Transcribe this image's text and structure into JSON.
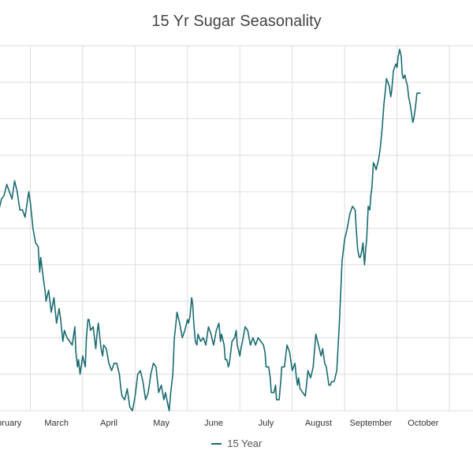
{
  "chart_data": {
    "type": "line",
    "title": "15 Yr Sugar Seasonality",
    "xlabel": "",
    "ylabel": "",
    "x_tick_labels": [
      "February",
      "March",
      "April",
      "May",
      "June",
      "July",
      "August",
      "September",
      "October"
    ],
    "x_range": [
      0,
      9.45
    ],
    "ylim": [
      0,
      100
    ],
    "grid": true,
    "legend_position": "bottom",
    "series": [
      {
        "name": "15 Year",
        "color": "#1a6b70",
        "points": [
          [
            0.0,
            64
          ],
          [
            0.05,
            61
          ],
          [
            0.1,
            55
          ],
          [
            0.15,
            52
          ],
          [
            0.2,
            48
          ],
          [
            0.25,
            44
          ],
          [
            0.28,
            43
          ],
          [
            0.3,
            45
          ],
          [
            0.35,
            52
          ],
          [
            0.4,
            55
          ],
          [
            0.45,
            58
          ],
          [
            0.5,
            59
          ],
          [
            0.55,
            62
          ],
          [
            0.6,
            60
          ],
          [
            0.65,
            58
          ],
          [
            0.7,
            63
          ],
          [
            0.75,
            60
          ],
          [
            0.8,
            55
          ],
          [
            0.85,
            55
          ],
          [
            0.9,
            53
          ],
          [
            0.92,
            55
          ],
          [
            0.95,
            58
          ],
          [
            0.97,
            60
          ],
          [
            1.0,
            57
          ],
          [
            1.05,
            50
          ],
          [
            1.1,
            46
          ],
          [
            1.15,
            45
          ],
          [
            1.18,
            38
          ],
          [
            1.2,
            42
          ],
          [
            1.25,
            36
          ],
          [
            1.28,
            33
          ],
          [
            1.3,
            30
          ],
          [
            1.35,
            33
          ],
          [
            1.4,
            27
          ],
          [
            1.45,
            31
          ],
          [
            1.5,
            24
          ],
          [
            1.55,
            28
          ],
          [
            1.58,
            25
          ],
          [
            1.62,
            19
          ],
          [
            1.65,
            22
          ],
          [
            1.7,
            20
          ],
          [
            1.75,
            19
          ],
          [
            1.8,
            18
          ],
          [
            1.85,
            23
          ],
          [
            1.87,
            16
          ],
          [
            1.9,
            12
          ],
          [
            1.92,
            14
          ],
          [
            1.95,
            10
          ],
          [
            2.0,
            15
          ],
          [
            2.05,
            12
          ],
          [
            2.07,
            20
          ],
          [
            2.1,
            25
          ],
          [
            2.12,
            25
          ],
          [
            2.15,
            22
          ],
          [
            2.2,
            23
          ],
          [
            2.25,
            17
          ],
          [
            2.28,
            22
          ],
          [
            2.3,
            24
          ],
          [
            2.32,
            21
          ],
          [
            2.35,
            17
          ],
          [
            2.38,
            15
          ],
          [
            2.4,
            18
          ],
          [
            2.45,
            17
          ],
          [
            2.5,
            13
          ],
          [
            2.55,
            11
          ],
          [
            2.6,
            13
          ],
          [
            2.65,
            13
          ],
          [
            2.7,
            10
          ],
          [
            2.73,
            6
          ],
          [
            2.75,
            4
          ],
          [
            2.8,
            3
          ],
          [
            2.85,
            6
          ],
          [
            2.9,
            1
          ],
          [
            2.95,
            0
          ],
          [
            3.0,
            4
          ],
          [
            3.05,
            10
          ],
          [
            3.1,
            11
          ],
          [
            3.15,
            8
          ],
          [
            3.18,
            5
          ],
          [
            3.2,
            3
          ],
          [
            3.25,
            5
          ],
          [
            3.3,
            10
          ],
          [
            3.35,
            13
          ],
          [
            3.4,
            12
          ],
          [
            3.45,
            5
          ],
          [
            3.5,
            7
          ],
          [
            3.55,
            3
          ],
          [
            3.58,
            5
          ],
          [
            3.62,
            2
          ],
          [
            3.65,
            0
          ],
          [
            3.68,
            5
          ],
          [
            3.72,
            10
          ],
          [
            3.75,
            20
          ],
          [
            3.78,
            24
          ],
          [
            3.8,
            27
          ],
          [
            3.85,
            24
          ],
          [
            3.9,
            20
          ],
          [
            3.95,
            22
          ],
          [
            4.0,
            25
          ],
          [
            4.02,
            24
          ],
          [
            4.05,
            26
          ],
          [
            4.08,
            31
          ],
          [
            4.1,
            29
          ],
          [
            4.12,
            24
          ],
          [
            4.15,
            19
          ],
          [
            4.18,
            18
          ],
          [
            4.2,
            21
          ],
          [
            4.25,
            19
          ],
          [
            4.3,
            20
          ],
          [
            4.35,
            18
          ],
          [
            4.4,
            23
          ],
          [
            4.45,
            21
          ],
          [
            4.48,
            19
          ],
          [
            4.5,
            18
          ],
          [
            4.55,
            22
          ],
          [
            4.6,
            24
          ],
          [
            4.63,
            19
          ],
          [
            4.65,
            21
          ],
          [
            4.7,
            18
          ],
          [
            4.72,
            14
          ],
          [
            4.75,
            14
          ],
          [
            4.78,
            12
          ],
          [
            4.8,
            13
          ],
          [
            4.85,
            19
          ],
          [
            4.9,
            20
          ],
          [
            4.93,
            22
          ],
          [
            4.95,
            18
          ],
          [
            5.0,
            15
          ],
          [
            5.02,
            17
          ],
          [
            5.05,
            19
          ],
          [
            5.1,
            23
          ],
          [
            5.15,
            22
          ],
          [
            5.2,
            18
          ],
          [
            5.25,
            20
          ],
          [
            5.3,
            18
          ],
          [
            5.35,
            20
          ],
          [
            5.4,
            19
          ],
          [
            5.45,
            18
          ],
          [
            5.48,
            16
          ],
          [
            5.5,
            12
          ],
          [
            5.55,
            12
          ],
          [
            5.58,
            9
          ],
          [
            5.6,
            5
          ],
          [
            5.65,
            5
          ],
          [
            5.68,
            7
          ],
          [
            5.7,
            3
          ],
          [
            5.75,
            3
          ],
          [
            5.78,
            8
          ],
          [
            5.8,
            12
          ],
          [
            5.85,
            12
          ],
          [
            5.9,
            18
          ],
          [
            5.95,
            16
          ],
          [
            6.0,
            11
          ],
          [
            6.05,
            13
          ],
          [
            6.08,
            9
          ],
          [
            6.1,
            7
          ],
          [
            6.12,
            9
          ],
          [
            6.15,
            6
          ],
          [
            6.2,
            5
          ],
          [
            6.25,
            4
          ],
          [
            6.3,
            11
          ],
          [
            6.35,
            9
          ],
          [
            6.4,
            12
          ],
          [
            6.45,
            21
          ],
          [
            6.5,
            18
          ],
          [
            6.55,
            15
          ],
          [
            6.58,
            17
          ],
          [
            6.62,
            13
          ],
          [
            6.65,
            12
          ],
          [
            6.7,
            7
          ],
          [
            6.73,
            7
          ],
          [
            6.75,
            8
          ],
          [
            6.8,
            8
          ],
          [
            6.85,
            11
          ],
          [
            6.9,
            24
          ],
          [
            6.95,
            41
          ],
          [
            7.0,
            47
          ],
          [
            7.05,
            50
          ],
          [
            7.1,
            54
          ],
          [
            7.15,
            56
          ],
          [
            7.2,
            55
          ],
          [
            7.22,
            50
          ],
          [
            7.25,
            44
          ],
          [
            7.28,
            42
          ],
          [
            7.3,
            42
          ],
          [
            7.33,
            44
          ],
          [
            7.35,
            46
          ],
          [
            7.38,
            40
          ],
          [
            7.4,
            44
          ],
          [
            7.42,
            47
          ],
          [
            7.45,
            56
          ],
          [
            7.48,
            55
          ],
          [
            7.5,
            59
          ],
          [
            7.52,
            61
          ],
          [
            7.55,
            68
          ],
          [
            7.58,
            67
          ],
          [
            7.6,
            66
          ],
          [
            7.65,
            69
          ],
          [
            7.68,
            72
          ],
          [
            7.7,
            75
          ],
          [
            7.72,
            78
          ],
          [
            7.75,
            84
          ],
          [
            7.78,
            88
          ],
          [
            7.8,
            91
          ],
          [
            7.85,
            89
          ],
          [
            7.88,
            86
          ],
          [
            7.9,
            88
          ],
          [
            7.93,
            93
          ],
          [
            7.95,
            94
          ],
          [
            7.98,
            95
          ],
          [
            8.0,
            94
          ],
          [
            8.02,
            97
          ],
          [
            8.05,
            99
          ],
          [
            8.08,
            97
          ],
          [
            8.1,
            92
          ],
          [
            8.12,
            91
          ],
          [
            8.15,
            92
          ],
          [
            8.18,
            90
          ],
          [
            8.2,
            89
          ],
          [
            8.22,
            86
          ],
          [
            8.25,
            84
          ],
          [
            8.27,
            82
          ],
          [
            8.3,
            79
          ],
          [
            8.32,
            80
          ],
          [
            8.35,
            83
          ],
          [
            8.38,
            87
          ],
          [
            8.4,
            87
          ],
          [
            8.43,
            87
          ],
          [
            8.45,
            87
          ]
        ]
      }
    ]
  }
}
